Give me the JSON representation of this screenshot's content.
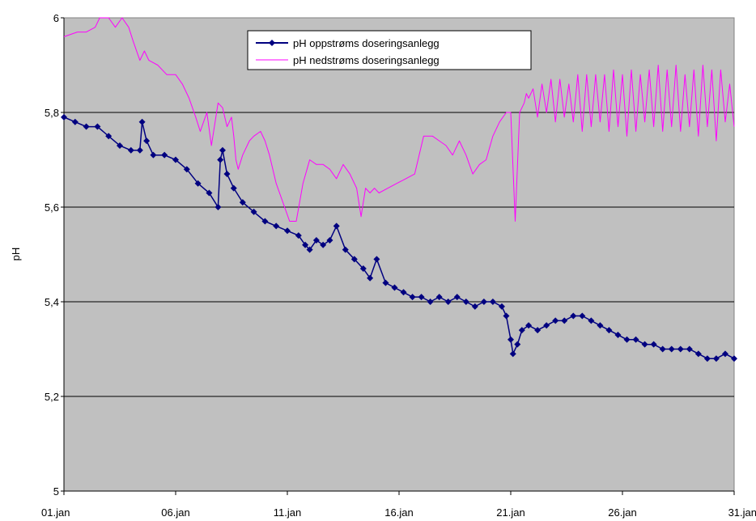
{
  "chart_data": {
    "type": "line",
    "title": "",
    "xlabel": "",
    "ylabel": "pH",
    "ylim": [
      5,
      6
    ],
    "yticks": [
      "5",
      "5,2",
      "5,4",
      "5,6",
      "5,8",
      "6"
    ],
    "xlim": [
      "01.jan",
      "31.jan"
    ],
    "xticks": [
      "01.jan",
      "06.jan",
      "11.jan",
      "16.jan",
      "21.jan",
      "26.jan",
      "31.jan"
    ],
    "grid": "horizontal",
    "legend_position": "top-center",
    "background_color": "#C0C0C0",
    "series": [
      {
        "name": "pH oppstrøms doseringsanlegg",
        "color": "#000080",
        "marker": "diamond",
        "x": [
          1,
          1.5,
          2,
          2.5,
          3,
          3.5,
          4,
          4.4,
          4.5,
          4.7,
          5,
          5.5,
          6,
          6.5,
          7,
          7.5,
          7.9,
          8.0,
          8.1,
          8.3,
          8.6,
          9,
          9.5,
          10,
          10.5,
          11,
          11.5,
          11.8,
          12,
          12.3,
          12.6,
          12.9,
          13.2,
          13.6,
          14,
          14.4,
          14.7,
          15,
          15.4,
          15.8,
          16.2,
          16.6,
          17,
          17.4,
          17.8,
          18.2,
          18.6,
          19,
          19.4,
          19.8,
          20.2,
          20.6,
          20.8,
          21.0,
          21.1,
          21.3,
          21.5,
          21.8,
          22.2,
          22.6,
          23,
          23.4,
          23.8,
          24.2,
          24.6,
          25,
          25.4,
          25.8,
          26.2,
          26.6,
          27,
          27.4,
          27.8,
          28.2,
          28.6,
          29,
          29.4,
          29.8,
          30.2,
          30.6,
          31
        ],
        "y": [
          5.79,
          5.78,
          5.77,
          5.77,
          5.75,
          5.73,
          5.72,
          5.72,
          5.78,
          5.74,
          5.71,
          5.71,
          5.7,
          5.68,
          5.65,
          5.63,
          5.6,
          5.7,
          5.72,
          5.67,
          5.64,
          5.61,
          5.59,
          5.57,
          5.56,
          5.55,
          5.54,
          5.52,
          5.51,
          5.53,
          5.52,
          5.53,
          5.56,
          5.51,
          5.49,
          5.47,
          5.45,
          5.49,
          5.44,
          5.43,
          5.42,
          5.41,
          5.41,
          5.4,
          5.41,
          5.4,
          5.41,
          5.4,
          5.39,
          5.4,
          5.4,
          5.39,
          5.37,
          5.32,
          5.29,
          5.31,
          5.34,
          5.35,
          5.34,
          5.35,
          5.36,
          5.36,
          5.37,
          5.37,
          5.36,
          5.35,
          5.34,
          5.33,
          5.32,
          5.32,
          5.31,
          5.31,
          5.3,
          5.3,
          5.3,
          5.3,
          5.29,
          5.28,
          5.28,
          5.29,
          5.28
        ]
      },
      {
        "name": "pH nedstrøms doseringsanlegg",
        "color": "#FF00FF",
        "marker": "none",
        "x": [
          1,
          1.6,
          2,
          2.4,
          2.6,
          3,
          3.3,
          3.6,
          3.9,
          4.1,
          4.4,
          4.6,
          4.8,
          5.2,
          5.6,
          6.0,
          6.3,
          6.6,
          6.9,
          7.1,
          7.4,
          7.6,
          7.9,
          8.1,
          8.3,
          8.5,
          8.6,
          8.7,
          8.8,
          9,
          9.3,
          9.5,
          9.8,
          10.0,
          10.2,
          10.5,
          10.8,
          11.1,
          11.4,
          11.7,
          12.0,
          12.3,
          12.6,
          12.9,
          13.2,
          13.5,
          13.8,
          14.1,
          14.3,
          14.5,
          14.7,
          14.9,
          15.1,
          15.5,
          15.9,
          16.3,
          16.7,
          17.1,
          17.5,
          17.8,
          18.1,
          18.4,
          18.7,
          19.0,
          19.3,
          19.6,
          19.9,
          20.2,
          20.5,
          20.8,
          21.0,
          21.2,
          21.4,
          21.6,
          21.7,
          21.8,
          22.0,
          22.2,
          22.4,
          22.6,
          22.8,
          23.0,
          23.2,
          23.4,
          23.6,
          23.8,
          24.0,
          24.2,
          24.4,
          24.6,
          24.8,
          25.0,
          25.2,
          25.4,
          25.6,
          25.8,
          26.0,
          26.2,
          26.4,
          26.6,
          26.8,
          27.0,
          27.2,
          27.4,
          27.6,
          27.8,
          28.0,
          28.2,
          28.4,
          28.6,
          28.8,
          29.0,
          29.2,
          29.4,
          29.6,
          29.8,
          30.0,
          30.2,
          30.4,
          30.6,
          30.8,
          31.0
        ],
        "y": [
          5.96,
          5.97,
          5.97,
          5.98,
          6.0,
          6.0,
          5.98,
          6.0,
          5.98,
          5.95,
          5.91,
          5.93,
          5.91,
          5.9,
          5.88,
          5.88,
          5.86,
          5.83,
          5.79,
          5.76,
          5.8,
          5.73,
          5.82,
          5.81,
          5.77,
          5.79,
          5.75,
          5.7,
          5.68,
          5.71,
          5.74,
          5.75,
          5.76,
          5.74,
          5.71,
          5.65,
          5.61,
          5.57,
          5.57,
          5.65,
          5.7,
          5.69,
          5.69,
          5.68,
          5.66,
          5.69,
          5.67,
          5.64,
          5.58,
          5.64,
          5.63,
          5.64,
          5.63,
          5.64,
          5.65,
          5.66,
          5.67,
          5.75,
          5.75,
          5.74,
          5.73,
          5.71,
          5.74,
          5.71,
          5.67,
          5.69,
          5.7,
          5.75,
          5.78,
          5.8,
          5.8,
          5.57,
          5.8,
          5.82,
          5.84,
          5.83,
          5.85,
          5.79,
          5.86,
          5.8,
          5.87,
          5.78,
          5.87,
          5.79,
          5.86,
          5.78,
          5.88,
          5.76,
          5.88,
          5.77,
          5.88,
          5.78,
          5.88,
          5.76,
          5.89,
          5.77,
          5.88,
          5.75,
          5.89,
          5.76,
          5.88,
          5.78,
          5.89,
          5.77,
          5.9,
          5.76,
          5.89,
          5.77,
          5.9,
          5.76,
          5.88,
          5.77,
          5.89,
          5.75,
          5.9,
          5.77,
          5.89,
          5.74,
          5.89,
          5.78,
          5.86,
          5.77
        ]
      }
    ]
  }
}
